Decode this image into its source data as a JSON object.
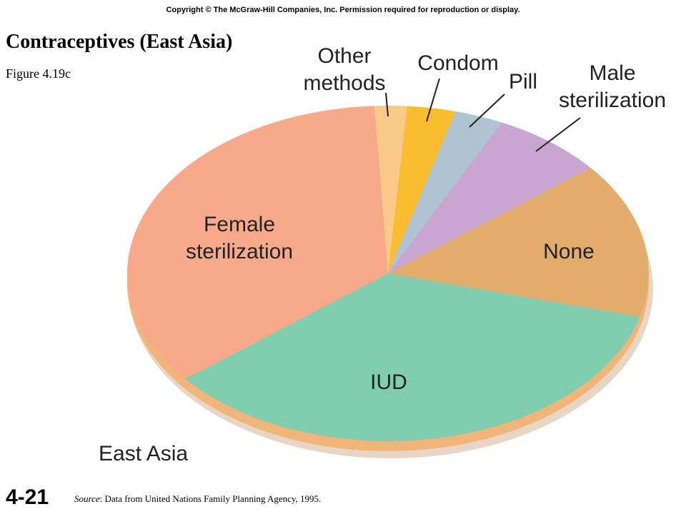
{
  "copyright": "Copyright © The McGraw-Hill Companies, Inc. Permission required for reproduction or display.",
  "slide_number": "4-21",
  "source_prefix": "Source",
  "source_text": ": Data from United Nations Family Planning Agency, 1995.",
  "chart_data": {
    "type": "pie",
    "title": "Contraceptives (East Asia)",
    "subtitle": "Figure 4.19c",
    "region_label": "East Asia",
    "categories": [
      "Other methods",
      "Condom",
      "Pill",
      "Male sterilization",
      "None",
      "IUD",
      "Female sterilization"
    ],
    "values": [
      2,
      3,
      3,
      7,
      15,
      35,
      35
    ],
    "colors": [
      "#f9c98a",
      "#fbbd2f",
      "#aec4d2",
      "#c9a6d1",
      "#e2ad6c",
      "#80cdb0",
      "#f8a98a"
    ]
  }
}
